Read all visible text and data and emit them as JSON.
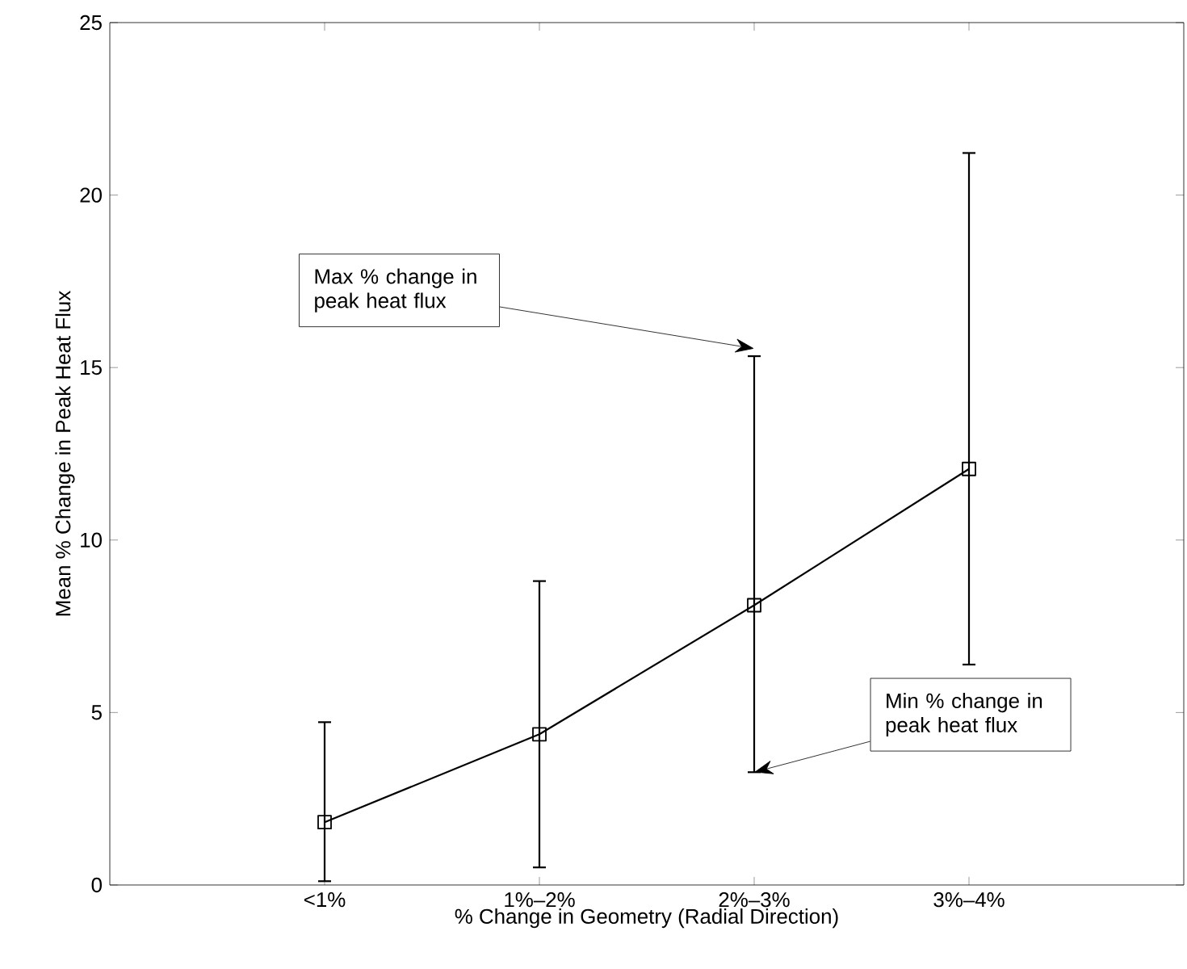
{
  "chart_data": {
    "type": "line",
    "xlabel": "% Change in Geometry (Radial Direction)",
    "ylabel": "Mean % Change in Peak Heat Flux",
    "categories": [
      "<1%",
      "1%–2%",
      "2%–3%",
      "3%–4%"
    ],
    "values": [
      1.82,
      4.37,
      8.11,
      12.06
    ],
    "errors": [
      [
        0.11,
        4.72
      ],
      [
        0.51,
        8.81
      ],
      [
        3.27,
        15.33
      ],
      [
        6.39,
        21.22
      ]
    ],
    "color": "#000000",
    "marker": "square",
    "line_style": "solid",
    "ylim": [
      0,
      25
    ],
    "yticks": [
      0,
      5,
      10,
      15,
      20,
      25
    ],
    "grid": false,
    "annotations": [
      {
        "text": "Max % change in peak heat flux",
        "x": "2%–3%",
        "y": 15.55
      },
      {
        "text": "Min % change in peak heat flux",
        "x": "2%–3%",
        "y": 3.27
      }
    ]
  }
}
